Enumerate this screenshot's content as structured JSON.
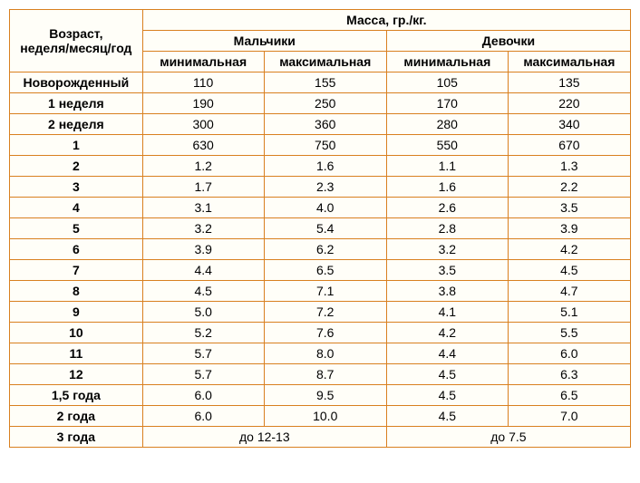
{
  "table": {
    "header": {
      "age": "Возраст,\nнеделя/месяц/год",
      "mass": "Масса, гр./кг.",
      "boys": "Мальчики",
      "girls": "Девочки",
      "min": "минимальная",
      "max": "максимальная"
    },
    "rows": [
      {
        "age": "Новорожденный",
        "bm": "110",
        "bx": "155",
        "gm": "105",
        "gx": "135"
      },
      {
        "age": "1 неделя",
        "bm": "190",
        "bx": "250",
        "gm": "170",
        "gx": "220"
      },
      {
        "age": "2 неделя",
        "bm": "300",
        "bx": "360",
        "gm": "280",
        "gx": "340"
      },
      {
        "age": "1",
        "bm": "630",
        "bx": "750",
        "gm": "550",
        "gx": "670"
      },
      {
        "age": "2",
        "bm": "1.2",
        "bx": "1.6",
        "gm": "1.1",
        "gx": "1.3"
      },
      {
        "age": "3",
        "bm": "1.7",
        "bx": "2.3",
        "gm": "1.6",
        "gx": "2.2"
      },
      {
        "age": "4",
        "bm": "3.1",
        "bx": "4.0",
        "gm": "2.6",
        "gx": "3.5"
      },
      {
        "age": "5",
        "bm": "3.2",
        "bx": "5.4",
        "gm": "2.8",
        "gx": "3.9"
      },
      {
        "age": "6",
        "bm": "3.9",
        "bx": "6.2",
        "gm": "3.2",
        "gx": "4.2"
      },
      {
        "age": "7",
        "bm": "4.4",
        "bx": "6.5",
        "gm": "3.5",
        "gx": "4.5"
      },
      {
        "age": "8",
        "bm": "4.5",
        "bx": "7.1",
        "gm": "3.8",
        "gx": "4.7"
      },
      {
        "age": "9",
        "bm": "5.0",
        "bx": "7.2",
        "gm": "4.1",
        "gx": "5.1"
      },
      {
        "age": "10",
        "bm": "5.2",
        "bx": "7.6",
        "gm": "4.2",
        "gx": "5.5"
      },
      {
        "age": "11",
        "bm": "5.7",
        "bx": "8.0",
        "gm": "4.4",
        "gx": "6.0"
      },
      {
        "age": "12",
        "bm": "5.7",
        "bx": "8.7",
        "gm": "4.5",
        "gx": "6.3"
      },
      {
        "age": "1,5 года",
        "bm": "6.0",
        "bx": "9.5",
        "gm": "4.5",
        "gx": "6.5"
      },
      {
        "age": "2 года",
        "bm": "6.0",
        "bx": "10.0",
        "gm": "4.5",
        "gx": "7.0"
      }
    ],
    "last_row": {
      "age": "3 года",
      "boys": "до 12-13",
      "girls": "до 7.5"
    }
  }
}
